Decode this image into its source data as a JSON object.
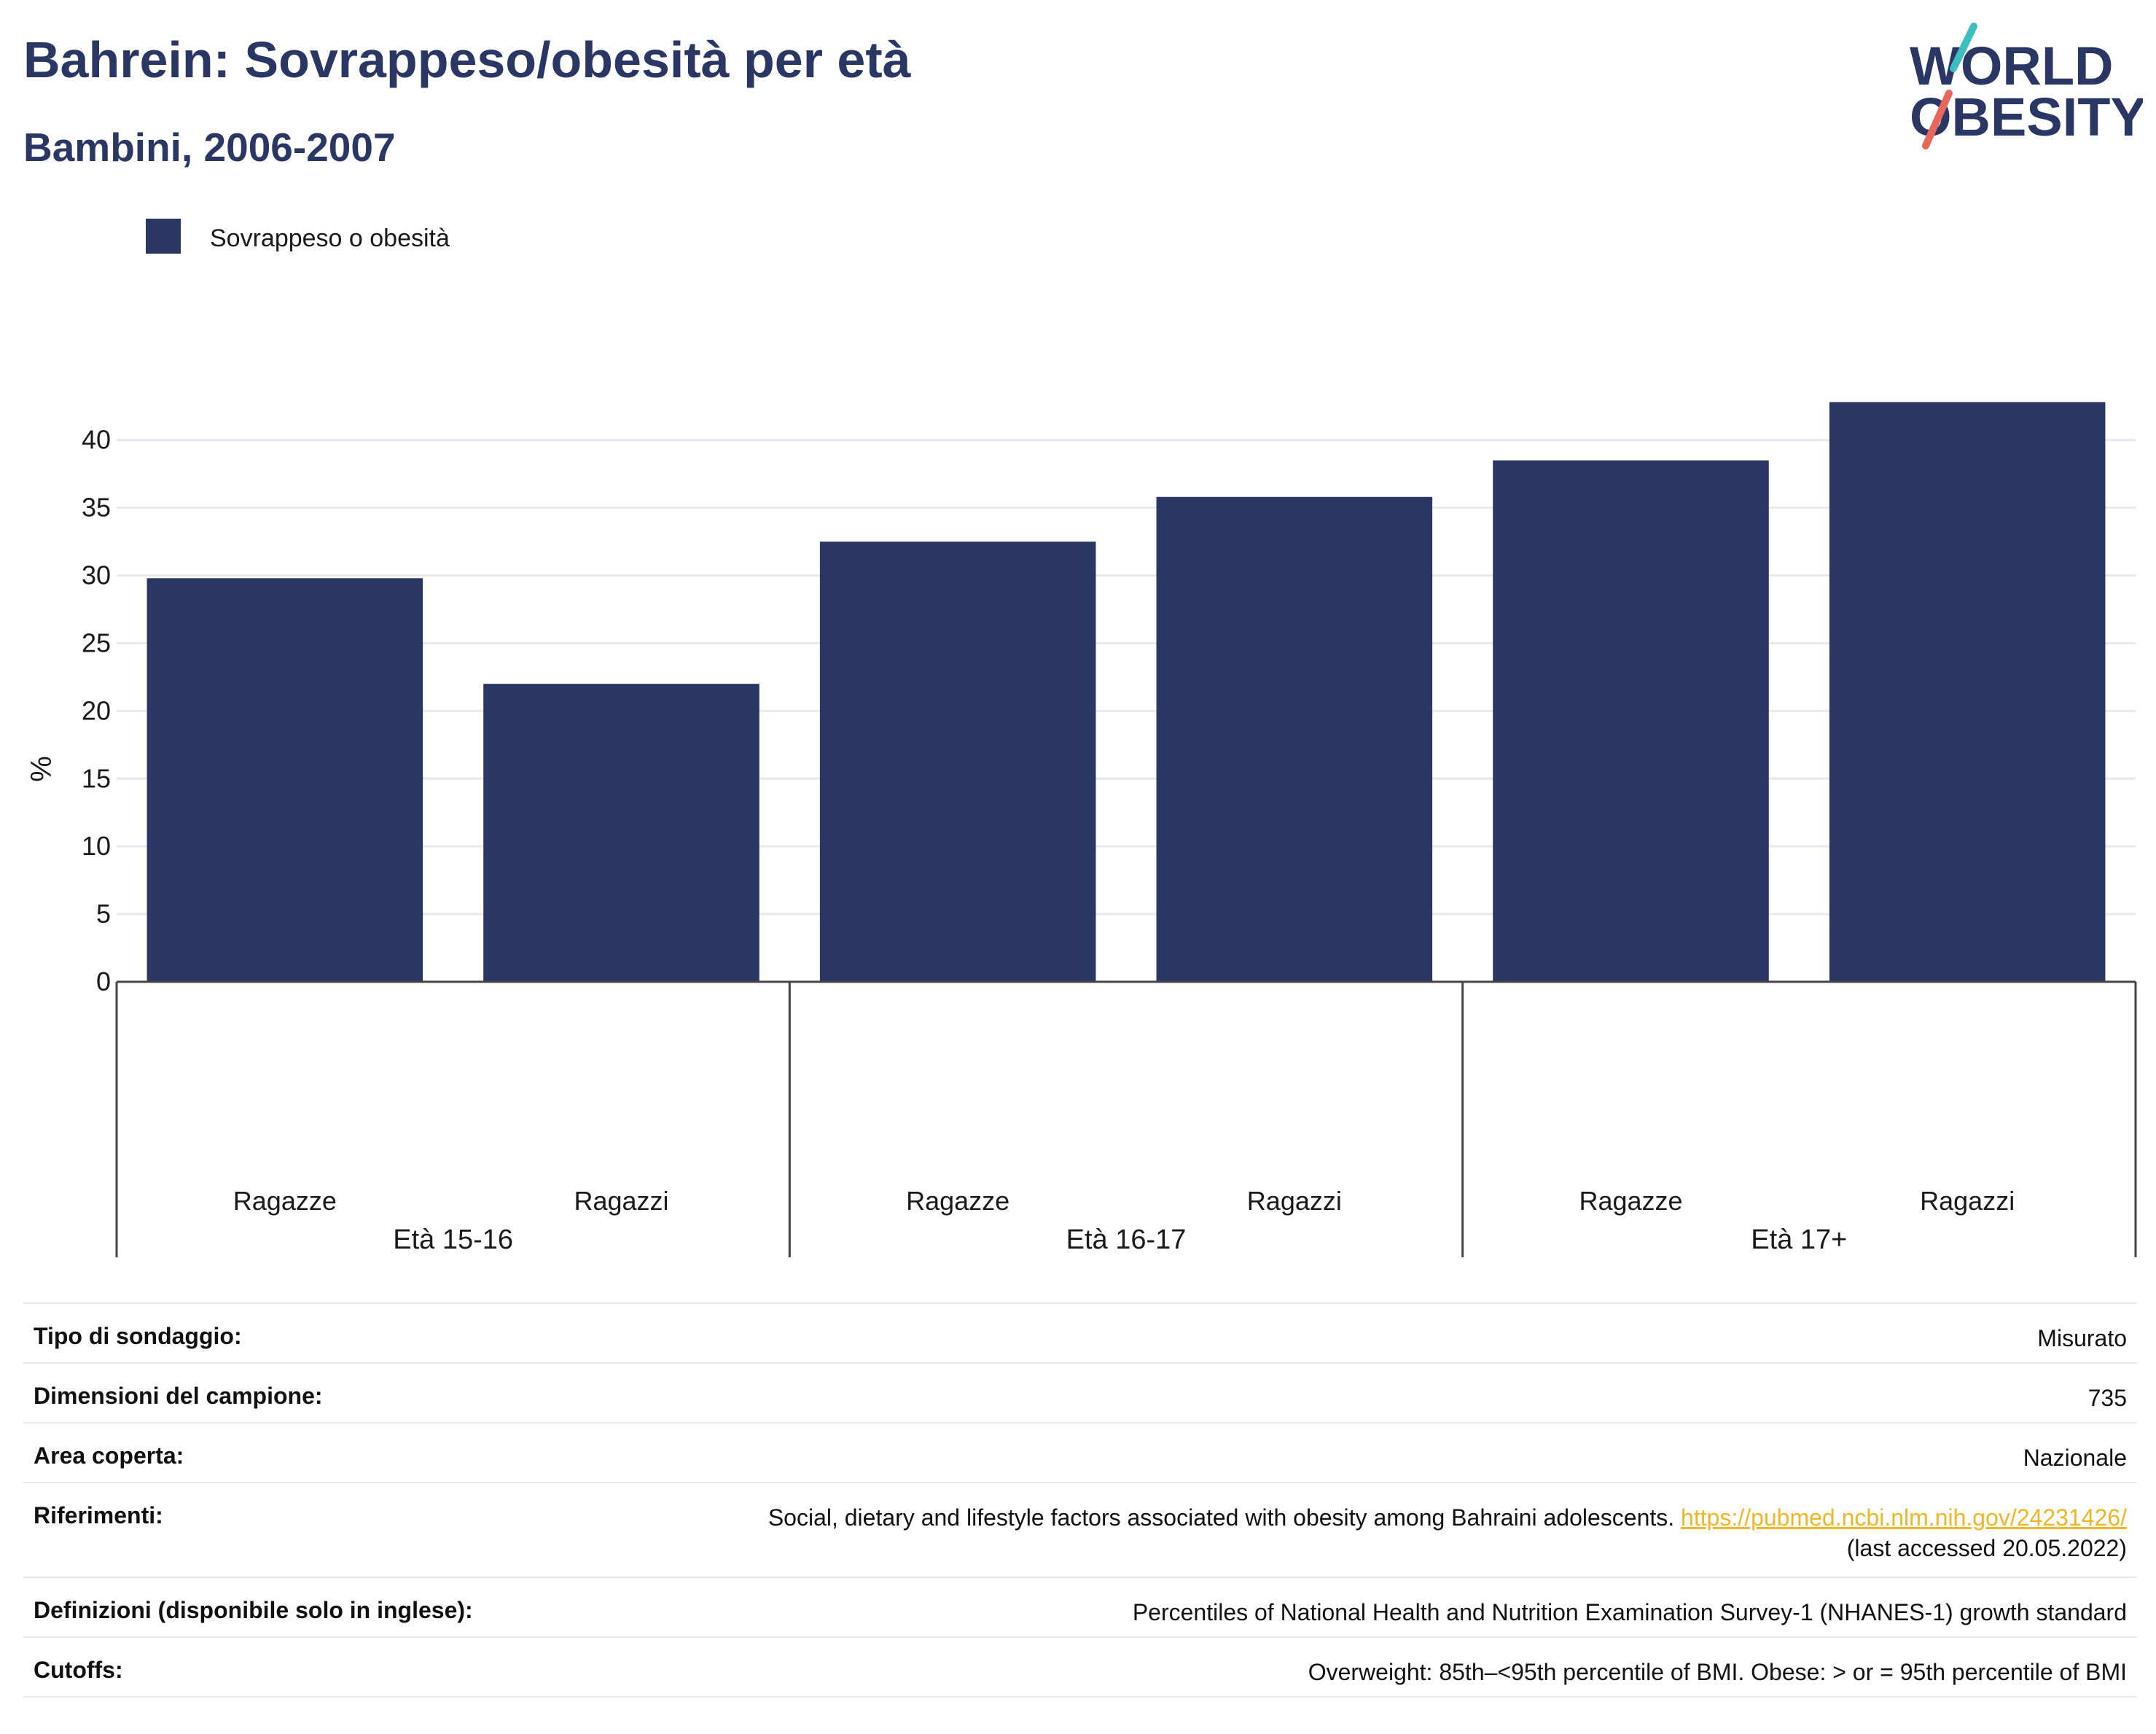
{
  "header": {
    "title": "Bahrein: Sovrappeso/obesità per età",
    "subtitle": "Bambini, 2006-2007"
  },
  "logo": {
    "line1": "WORLD",
    "line2": "OBESITY",
    "colors": {
      "text": "#2a3663",
      "slash_top": "#3bbfbf",
      "slash_bottom": "#e8675a"
    }
  },
  "chart_data": {
    "type": "bar",
    "ylabel": "%",
    "ylim": [
      0,
      43
    ],
    "yticks": [
      0,
      5,
      10,
      15,
      20,
      25,
      30,
      35,
      40
    ],
    "grid": true,
    "legend_position": "top-left",
    "series": [
      {
        "name": "Sovrappeso o obesità",
        "color": "#2a3663",
        "values": [
          29.8,
          22.0,
          32.5,
          35.8,
          38.5,
          42.8
        ]
      }
    ],
    "categories": [
      "Ragazze",
      "Ragazzi",
      "Ragazze",
      "Ragazzi",
      "Ragazze",
      "Ragazzi"
    ],
    "groups": [
      {
        "label": "Età 15-16",
        "count": 2
      },
      {
        "label": "Età 16-17",
        "count": 2
      },
      {
        "label": "Età 17+",
        "count": 2
      }
    ]
  },
  "info": {
    "rows": [
      {
        "label": "Tipo di sondaggio:",
        "value": "Misurato"
      },
      {
        "label": "Dimensioni del campione:",
        "value": "735"
      },
      {
        "label": "Area coperta:",
        "value": "Nazionale"
      },
      {
        "label": "Riferimenti:",
        "value": "Social, dietary and lifestyle factors associated with obesity among Bahraini adolescents.",
        "link": "https://pubmed.ncbi.nlm.nih.gov/24231426/",
        "note": "(last accessed 20.05.2022)"
      },
      {
        "label": "Definizioni (disponibile solo in inglese):",
        "value": "Percentiles of National Health and Nutrition Examination Survey-1 (NHANES-1) growth standard"
      },
      {
        "label": "Cutoffs:",
        "value": "Overweight: 85th–<95th percentile of BMI. Obese: > or = 95th percentile of BMI"
      }
    ]
  }
}
